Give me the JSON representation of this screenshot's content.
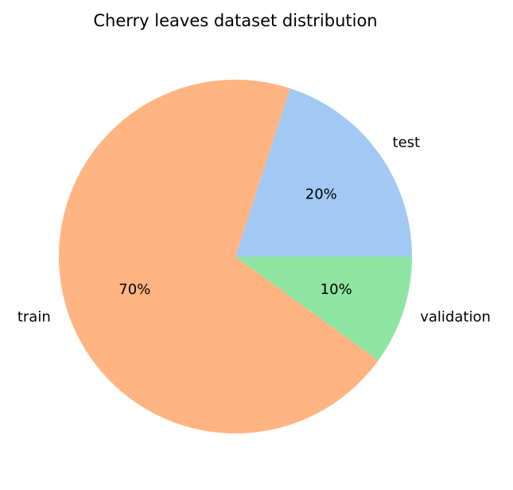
{
  "chart_data": {
    "type": "pie",
    "title": "Cherry leaves dataset distribution",
    "categories": [
      "test",
      "train",
      "validation"
    ],
    "values": [
      20,
      70,
      10
    ],
    "value_labels": [
      "20%",
      "70%",
      "10%"
    ],
    "colors": [
      "#a1c9f4",
      "#ffb482",
      "#8de5a1"
    ],
    "start_angle_deg": 0,
    "direction": "counterclockwise",
    "legend": "none"
  }
}
